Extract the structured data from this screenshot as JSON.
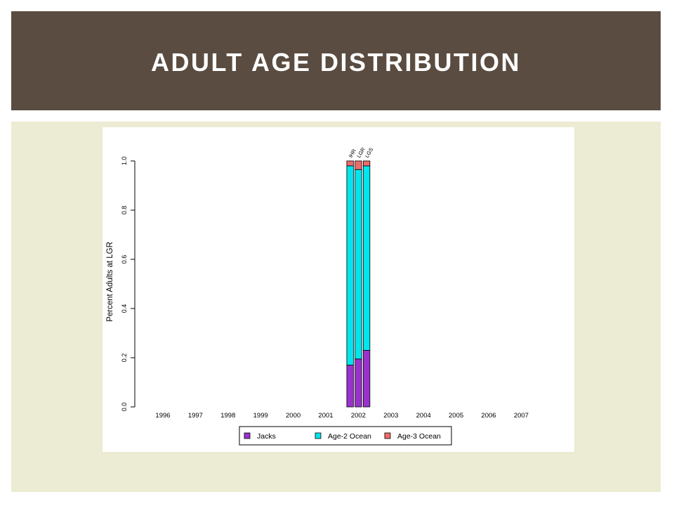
{
  "slide": {
    "title": "ADULT AGE DISTRIBUTION"
  },
  "colors": {
    "title_bar": "#5a4c40",
    "content_bg": "#ecebd3",
    "jacks": "#9932cc",
    "age2": "#00e5ee",
    "age3": "#f06a6a"
  },
  "chart_data": {
    "type": "bar",
    "stacked": true,
    "ylabel": "Percent Adults at LGR",
    "xlabel": "",
    "ylim": [
      0,
      1.0
    ],
    "yticks": [
      "0.0",
      "0.2",
      "0.4",
      "0.6",
      "0.8",
      "1.0"
    ],
    "categories": [
      "1996",
      "1997",
      "1998",
      "1999",
      "2000",
      "2001",
      "2002",
      "2003",
      "2004",
      "2005",
      "2006",
      "2007"
    ],
    "bars": [
      {
        "year": "2002",
        "label": "IHR",
        "jacks": 0.17,
        "age2": 0.81,
        "age3": 0.02
      },
      {
        "year": "2002",
        "label": "LGR",
        "jacks": 0.195,
        "age2": 0.77,
        "age3": 0.035
      },
      {
        "year": "2002",
        "label": "LGS",
        "jacks": 0.23,
        "age2": 0.75,
        "age3": 0.02
      }
    ],
    "series": [
      {
        "name": "Jacks"
      },
      {
        "name": "Age-2 Ocean"
      },
      {
        "name": "Age-3 Ocean"
      }
    ],
    "legend_position": "bottom"
  }
}
